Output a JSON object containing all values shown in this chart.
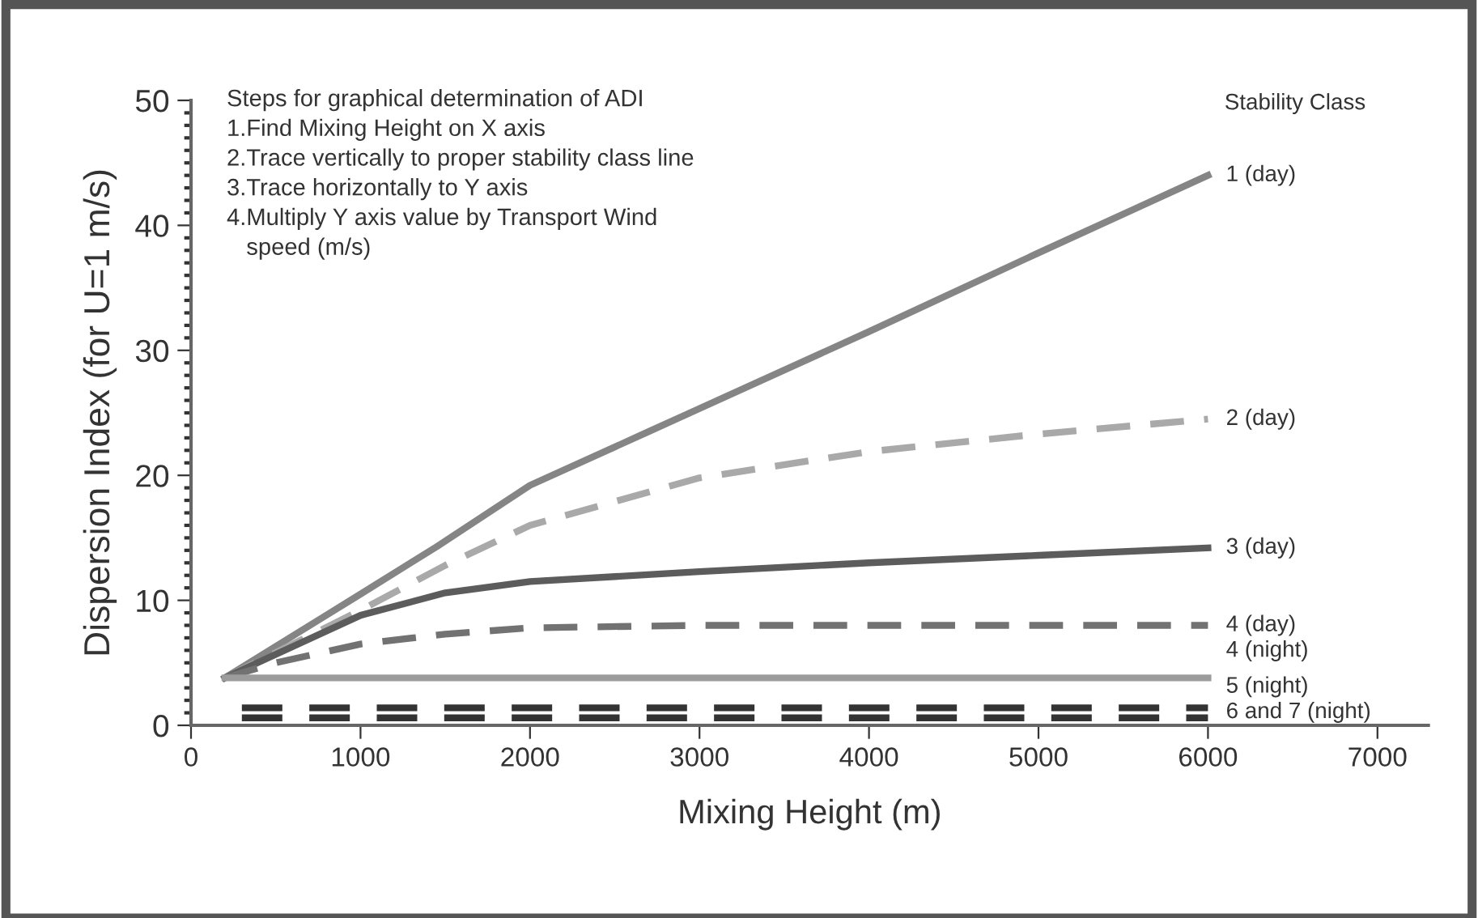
{
  "chart_data": {
    "type": "line",
    "xlabel": "Mixing Height (m)",
    "ylabel": "Dispersion Index (for U=1 m/s)",
    "xlim": [
      0,
      7300
    ],
    "xticks": [
      0,
      1000,
      2000,
      3000,
      4000,
      5000,
      6000,
      7000
    ],
    "ylim": [
      0,
      50
    ],
    "yticks": [
      0,
      10,
      20,
      30,
      40,
      50
    ],
    "grid": false,
    "legend": false,
    "marker": "none",
    "series": [
      {
        "name": "1 (day)",
        "color": "#858585",
        "line_style": "solid",
        "x": [
          200,
          1000,
          1450,
          2000,
          2700,
          4000,
          5000,
          6000
        ],
        "values": [
          3.8,
          10.5,
          14.3,
          19.2,
          23.5,
          31.5,
          37.8,
          44
        ]
      },
      {
        "name": "2 (day)",
        "color": "#a9a9a9",
        "line_style": "dashed",
        "x": [
          200,
          1000,
          1500,
          2000,
          3000,
          4000,
          5000,
          6000
        ],
        "values": [
          3.8,
          9.2,
          12.8,
          16,
          19.8,
          21.9,
          23.3,
          24.5
        ]
      },
      {
        "name": "3 (day)",
        "color": "#5c5c5c",
        "line_style": "solid",
        "x": [
          200,
          1000,
          1500,
          2000,
          3000,
          4000,
          5000,
          6000
        ],
        "values": [
          3.8,
          8.8,
          10.6,
          11.5,
          12.3,
          13,
          13.6,
          14.2
        ]
      },
      {
        "name": "4 (day)",
        "color": "#727272",
        "line_style": "dashed",
        "x": [
          200,
          500,
          1000,
          1500,
          2000,
          3000,
          4000,
          5000,
          6000
        ],
        "values": [
          3.8,
          5,
          6.5,
          7.3,
          7.8,
          8,
          8,
          8,
          8
        ]
      },
      {
        "name": "5 (night)",
        "color": "#9c9c9c",
        "line_style": "solid",
        "x": [
          200,
          6000
        ],
        "values": [
          3.8,
          3.8
        ]
      },
      {
        "name": "6 and 7 (night)",
        "color": "#333333",
        "line_style": "dashed",
        "x": [
          300,
          6000
        ],
        "values": [
          1.4,
          1.4
        ]
      },
      {
        "color": "#333333",
        "line_style": "dashed",
        "x": [
          300,
          6000
        ],
        "values": [
          0.6,
          0.6
        ]
      }
    ],
    "annotations": [
      "Steps for graphical determination of ADI\n1.Find Mixing Height on X axis\n2.Trace vertically to proper stability class line\n3.Trace horizontally to Y axis\n4.Multiply Y axis value by Transport Wind\n   speed (m/s)",
      "Stability Class",
      {
        "text": "4 (night)",
        "x": 6000,
        "y": 3.8
      }
    ]
  }
}
